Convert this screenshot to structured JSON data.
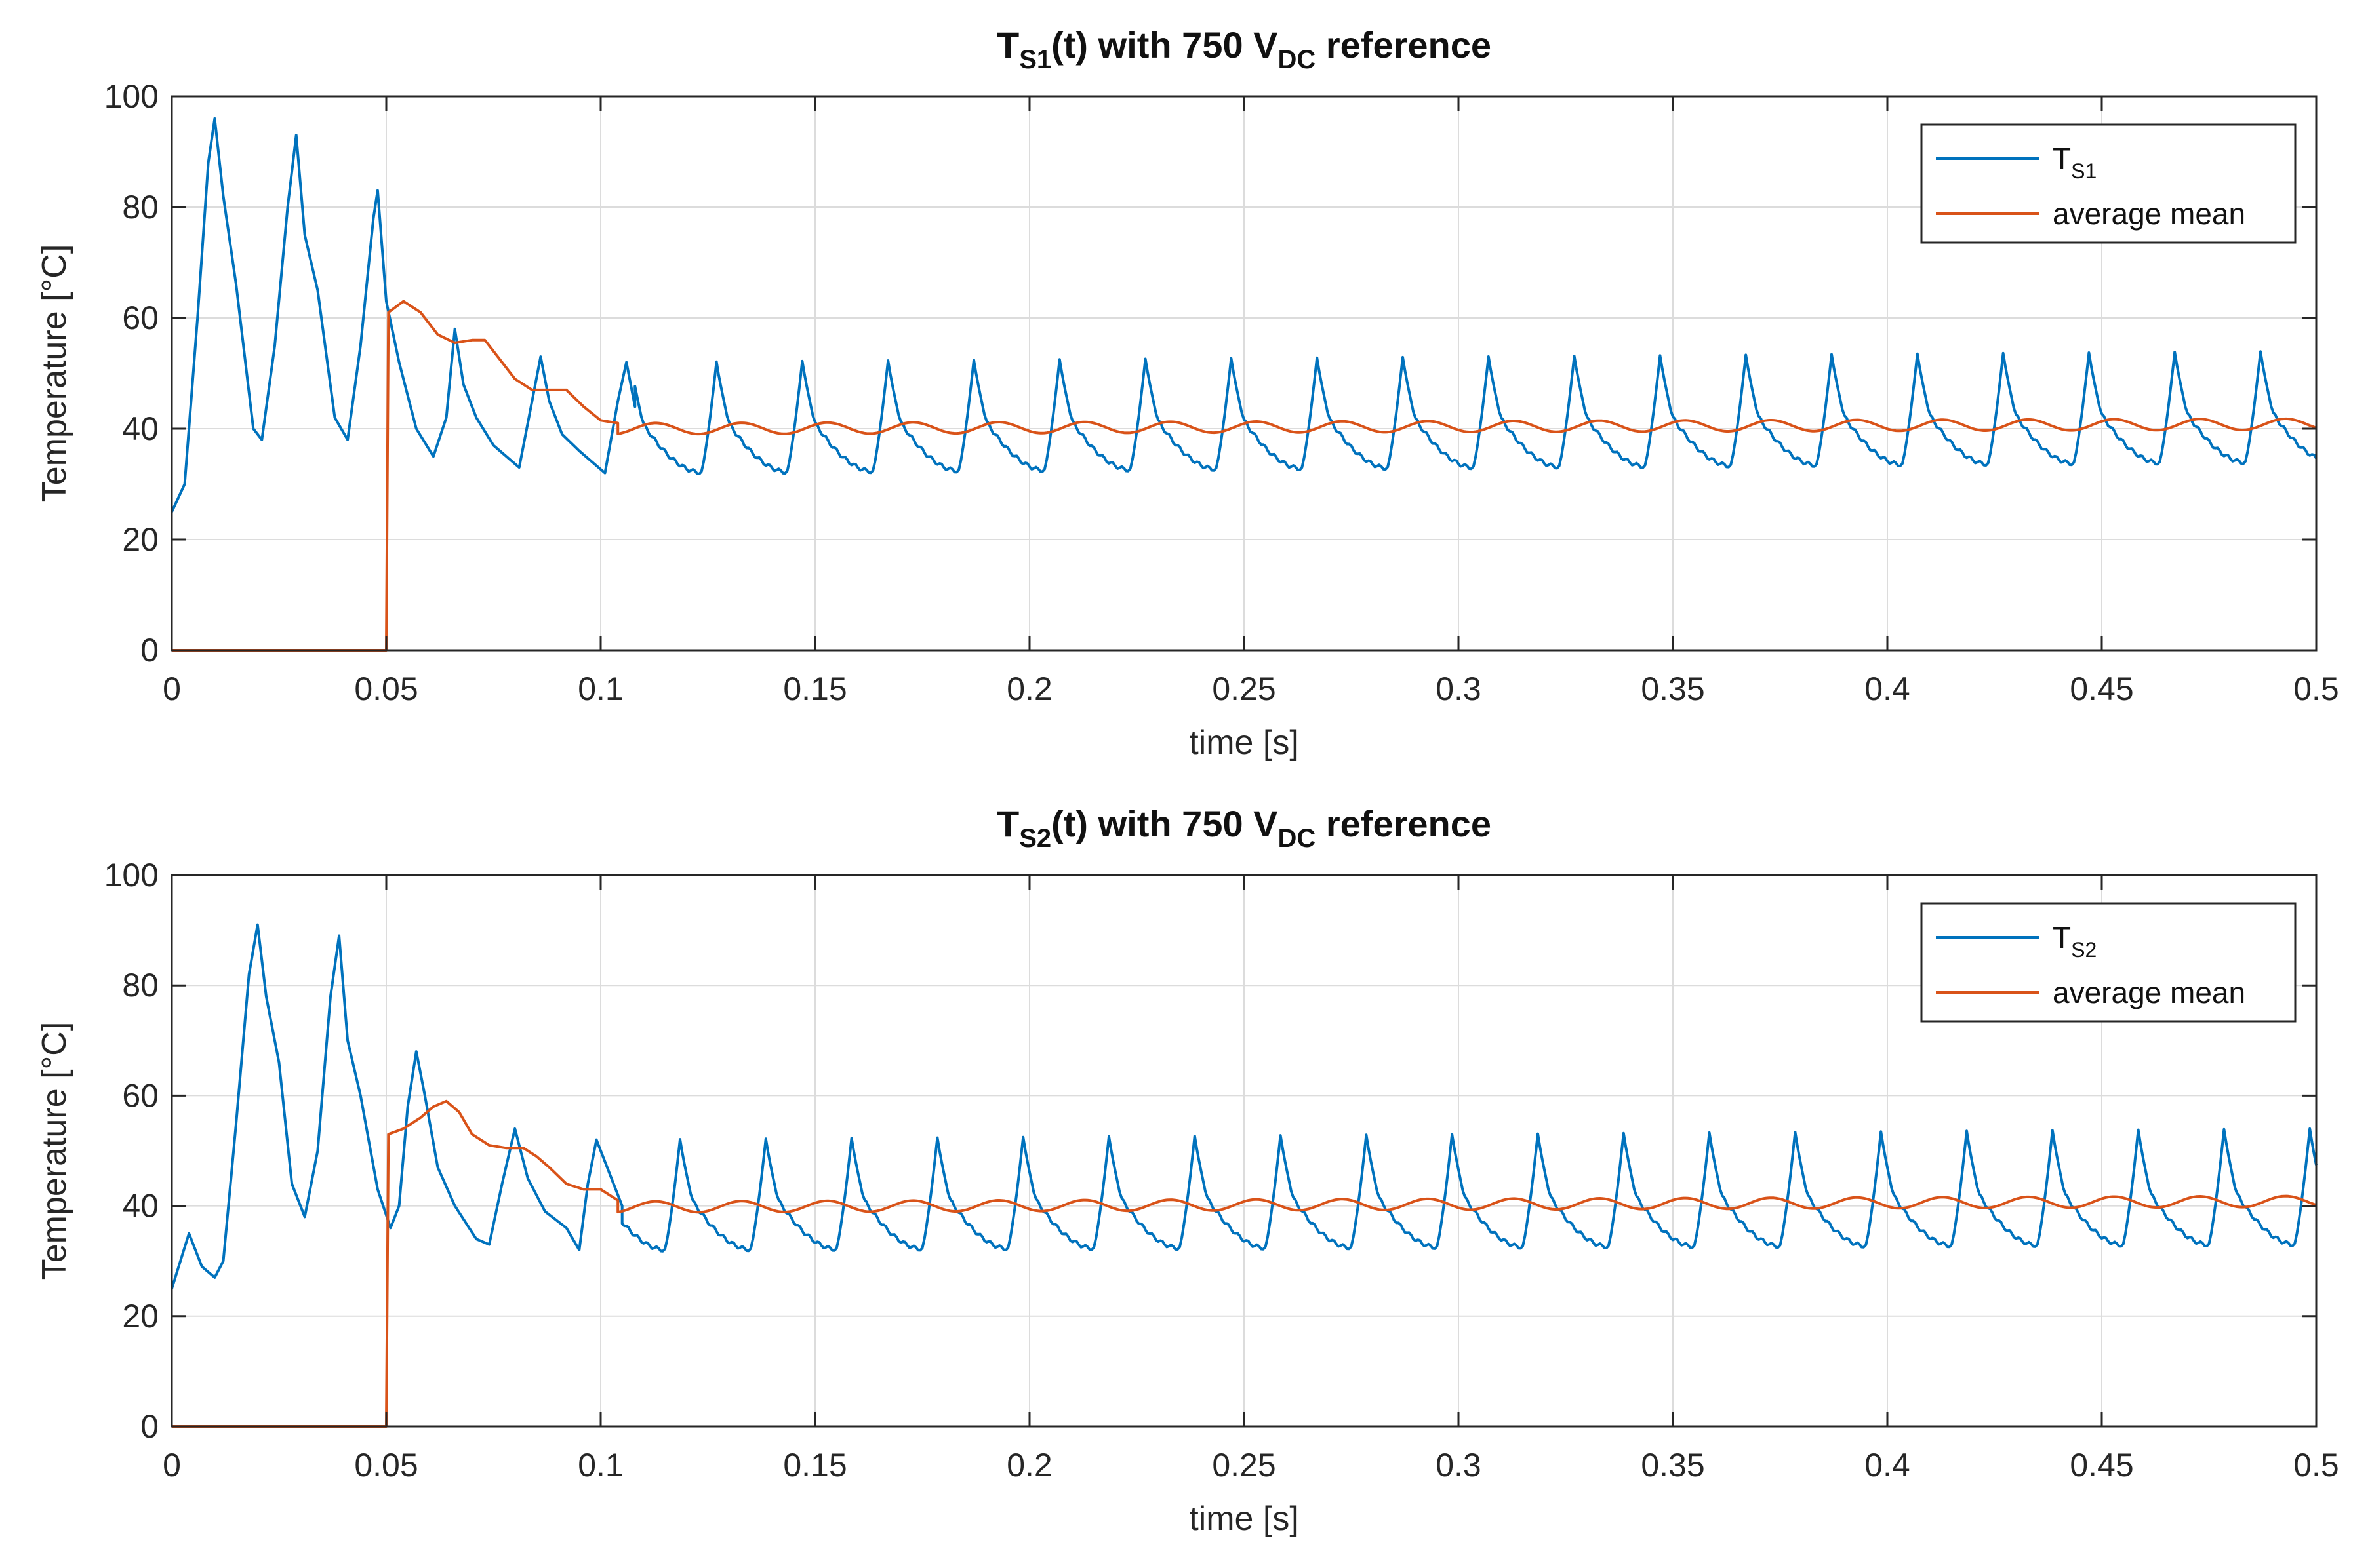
{
  "chart_data": [
    {
      "type": "line",
      "title": {
        "prefix": "T",
        "sub": "S1",
        "middle": "(t) with 750 V",
        "sub2": "DC",
        "suffix": " reference"
      },
      "xlabel": "time [s]",
      "ylabel": "Temperature [°C]",
      "xlim": [
        0,
        0.5
      ],
      "ylim": [
        0,
        100
      ],
      "grid": true,
      "legend_position": "top-right",
      "xticks": [
        0,
        0.05,
        0.1,
        0.15,
        0.2,
        0.25,
        0.3,
        0.35,
        0.4,
        0.45,
        0.5
      ],
      "xtick_labels": [
        "0",
        "0.05",
        "0.1",
        "0.15",
        "0.2",
        "0.25",
        "0.3",
        "0.35",
        "0.4",
        "0.45",
        "0.5"
      ],
      "yticks": [
        0,
        20,
        40,
        60,
        80,
        100
      ],
      "ytick_labels": [
        "0",
        "20",
        "40",
        "60",
        "80",
        "100"
      ],
      "series": [
        {
          "name": "T_S1",
          "legend_main": "T",
          "legend_sub": "S1",
          "color": "#0072BD",
          "x": [
            0,
            0.003,
            0.006,
            0.0085,
            0.01,
            0.012,
            0.015,
            0.019,
            0.021,
            0.024,
            0.027,
            0.029,
            0.031,
            0.034,
            0.038,
            0.041,
            0.044,
            0.047,
            0.048,
            0.05,
            0.053,
            0.057,
            0.061,
            0.064,
            0.066,
            0.068,
            0.071,
            0.075,
            0.081,
            0.084,
            0.086,
            0.088,
            0.091,
            0.095,
            0.101,
            0.104,
            0.106,
            0.108
          ],
          "y": [
            25,
            30,
            60,
            88,
            96,
            82,
            66,
            40,
            38,
            55,
            80,
            93,
            75,
            65,
            42,
            38,
            55,
            78,
            83,
            63,
            52,
            40,
            35,
            42,
            58,
            48,
            42,
            37,
            33,
            45,
            53,
            45,
            39,
            36,
            32,
            45,
            52,
            44
          ],
          "periodic": {
            "start": 0.108,
            "end": 0.5,
            "period": 0.02,
            "phase_peak": 0.007,
            "min_start": 32,
            "peak_start": 52,
            "peak_end": 54,
            "min_end": 34
          }
        },
        {
          "name": "average mean",
          "legend_main": "average mean",
          "color": "#D95319",
          "x": [
            0,
            0.0499,
            0.05,
            0.0505,
            0.054,
            0.058,
            0.062,
            0.066,
            0.07,
            0.073,
            0.076,
            0.08,
            0.084,
            0.088,
            0.092,
            0.096,
            0.1,
            0.104
          ],
          "y": [
            0,
            0,
            0,
            61,
            63,
            61,
            57,
            55.5,
            56,
            56,
            53,
            49,
            47,
            47,
            47,
            44,
            41.5,
            41
          ],
          "periodic": {
            "start": 0.104,
            "end": 0.5,
            "period": 0.02,
            "base_start": 40.0,
            "base_end": 40.8,
            "amplitude": 1.0
          }
        }
      ]
    },
    {
      "type": "line",
      "title": {
        "prefix": "T",
        "sub": "S2",
        "middle": "(t) with 750 V",
        "sub2": "DC",
        "suffix": " reference"
      },
      "xlabel": "time [s]",
      "ylabel": "Temperature [°C]",
      "xlim": [
        0,
        0.5
      ],
      "ylim": [
        0,
        100
      ],
      "grid": true,
      "legend_position": "top-right",
      "xticks": [
        0,
        0.05,
        0.1,
        0.15,
        0.2,
        0.25,
        0.3,
        0.35,
        0.4,
        0.45,
        0.5
      ],
      "xtick_labels": [
        "0",
        "0.05",
        "0.1",
        "0.15",
        "0.2",
        "0.25",
        "0.3",
        "0.35",
        "0.4",
        "0.45",
        "0.5"
      ],
      "yticks": [
        0,
        20,
        40,
        60,
        80,
        100
      ],
      "ytick_labels": [
        "0",
        "20",
        "40",
        "60",
        "80",
        "100"
      ],
      "series": [
        {
          "name": "T_S2",
          "legend_main": "T",
          "legend_sub": "S2",
          "color": "#0072BD",
          "x": [
            0,
            0.002,
            0.004,
            0.007,
            0.01,
            0.012,
            0.015,
            0.018,
            0.02,
            0.022,
            0.025,
            0.028,
            0.031,
            0.034,
            0.037,
            0.039,
            0.041,
            0.044,
            0.048,
            0.051,
            0.053,
            0.055,
            0.057,
            0.059,
            0.062,
            0.066,
            0.071,
            0.074,
            0.077,
            0.08,
            0.083,
            0.087,
            0.092,
            0.095,
            0.097,
            0.099,
            0.102,
            0.105
          ],
          "y": [
            25,
            30,
            35,
            29,
            27,
            30,
            55,
            82,
            91,
            78,
            66,
            44,
            38,
            50,
            78,
            89,
            70,
            60,
            43,
            36,
            40,
            58,
            68,
            60,
            47,
            40,
            34,
            33,
            44,
            54,
            45,
            39,
            36,
            32,
            44,
            52,
            46,
            40
          ],
          "periodic": {
            "start": 0.105,
            "end": 0.5,
            "period": 0.02,
            "phase_peak": 0.0185,
            "min_start": 32,
            "peak_start": 52,
            "peak_end": 54,
            "min_end": 33
          }
        },
        {
          "name": "average mean",
          "legend_main": "average mean",
          "color": "#D95319",
          "x": [
            0,
            0.0499,
            0.05,
            0.0505,
            0.054,
            0.058,
            0.061,
            0.064,
            0.067,
            0.07,
            0.074,
            0.078,
            0.082,
            0.085,
            0.088,
            0.092,
            0.096,
            0.1,
            0.104
          ],
          "y": [
            0,
            0,
            0,
            53,
            54,
            56,
            58,
            59,
            57,
            53,
            51,
            50.5,
            50.5,
            49,
            47,
            44,
            43,
            43,
            41
          ],
          "periodic": {
            "start": 0.104,
            "end": 0.5,
            "period": 0.02,
            "base_start": 39.8,
            "base_end": 40.8,
            "amplitude": 1.0
          }
        }
      ]
    }
  ]
}
